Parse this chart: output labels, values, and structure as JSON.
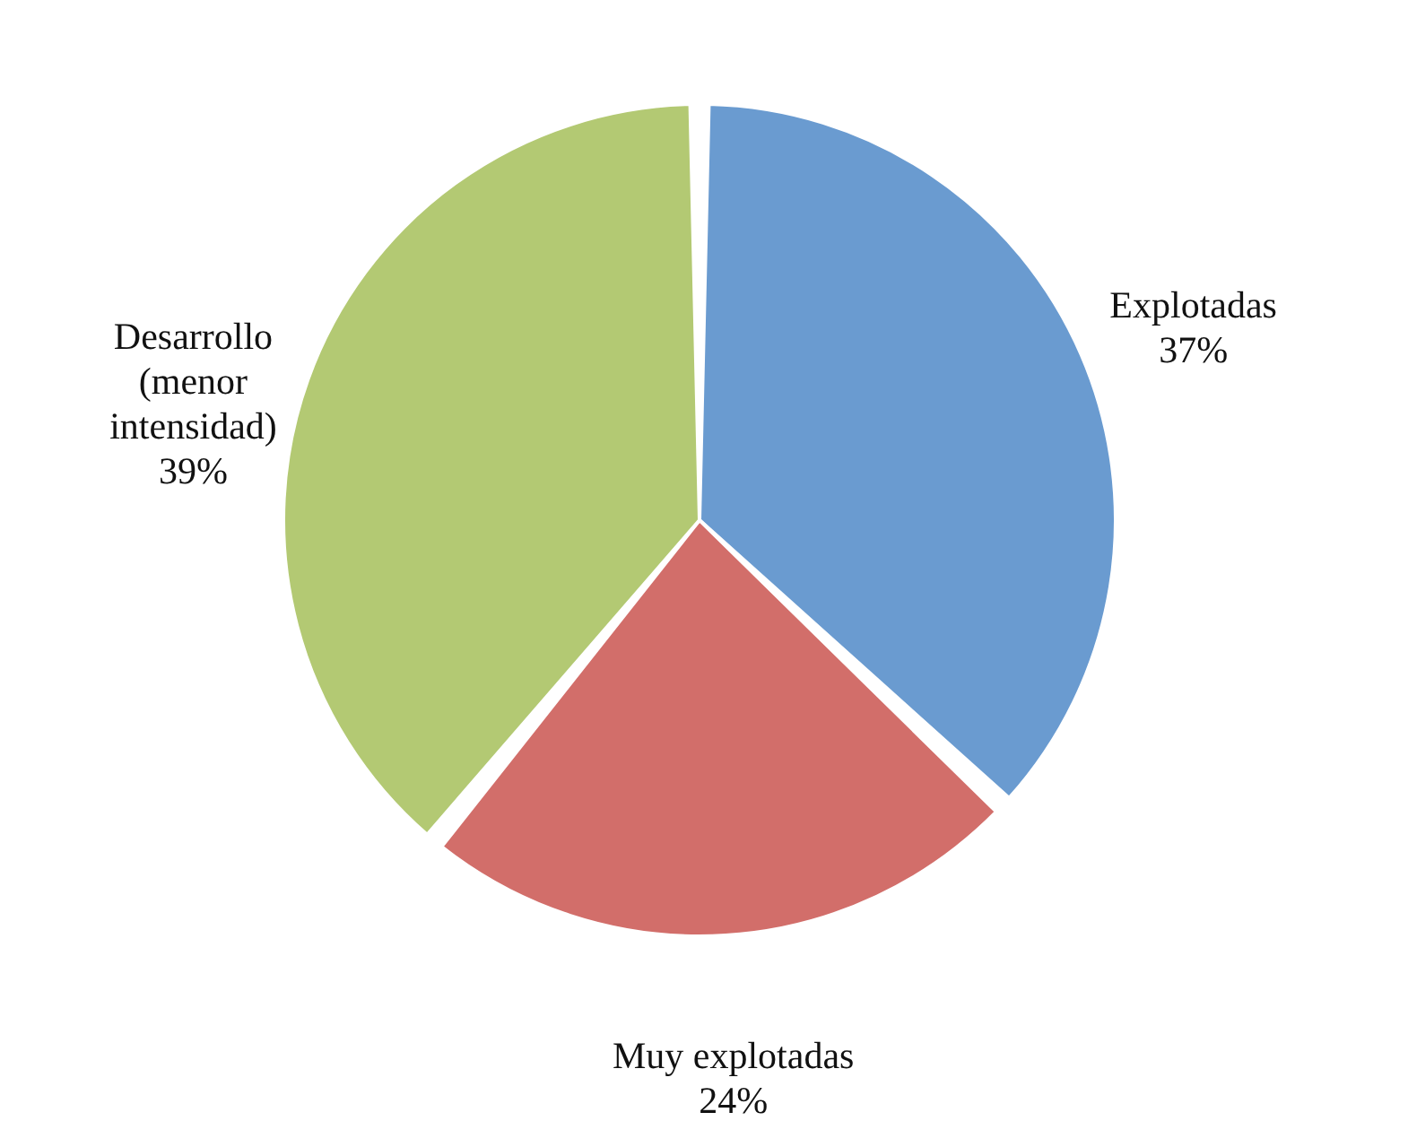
{
  "chart_data": {
    "type": "pie",
    "categories": [
      "Explotadas",
      "Muy explotadas",
      "Desarrollo\n(menor\nintensidad)"
    ],
    "values": [
      37,
      24,
      39
    ],
    "colors": [
      "#6a9bd0",
      "#d26e6a",
      "#b3c973"
    ],
    "value_labels": [
      "37%",
      "24%",
      "39%"
    ],
    "legend": false
  }
}
